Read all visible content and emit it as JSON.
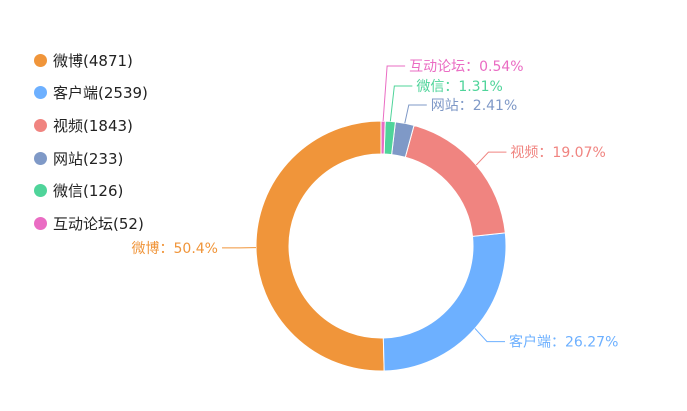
{
  "chart_data": {
    "type": "pie",
    "variant": "donut",
    "legend_position": "left",
    "categories": [
      "微博",
      "客户端",
      "视频",
      "网站",
      "微信",
      "互动论坛"
    ],
    "values": [
      4871,
      2539,
      1843,
      233,
      126,
      52
    ],
    "legend_labels": [
      "微博(4871)",
      "客户端(2539)",
      "视频(1843)",
      "网站(233)",
      "微信(126)",
      "互动论坛(52)"
    ],
    "percent_labels": [
      "微博：50.4%",
      "客户端：26.27%",
      "视频：19.07%",
      "网站：2.41%",
      "微信：1.31%",
      "互动论坛：0.54%"
    ],
    "colors": [
      "#f0953a",
      "#6db0ff",
      "#f08480",
      "#7f99c7",
      "#4fd49a",
      "#ea6cc3"
    ]
  }
}
